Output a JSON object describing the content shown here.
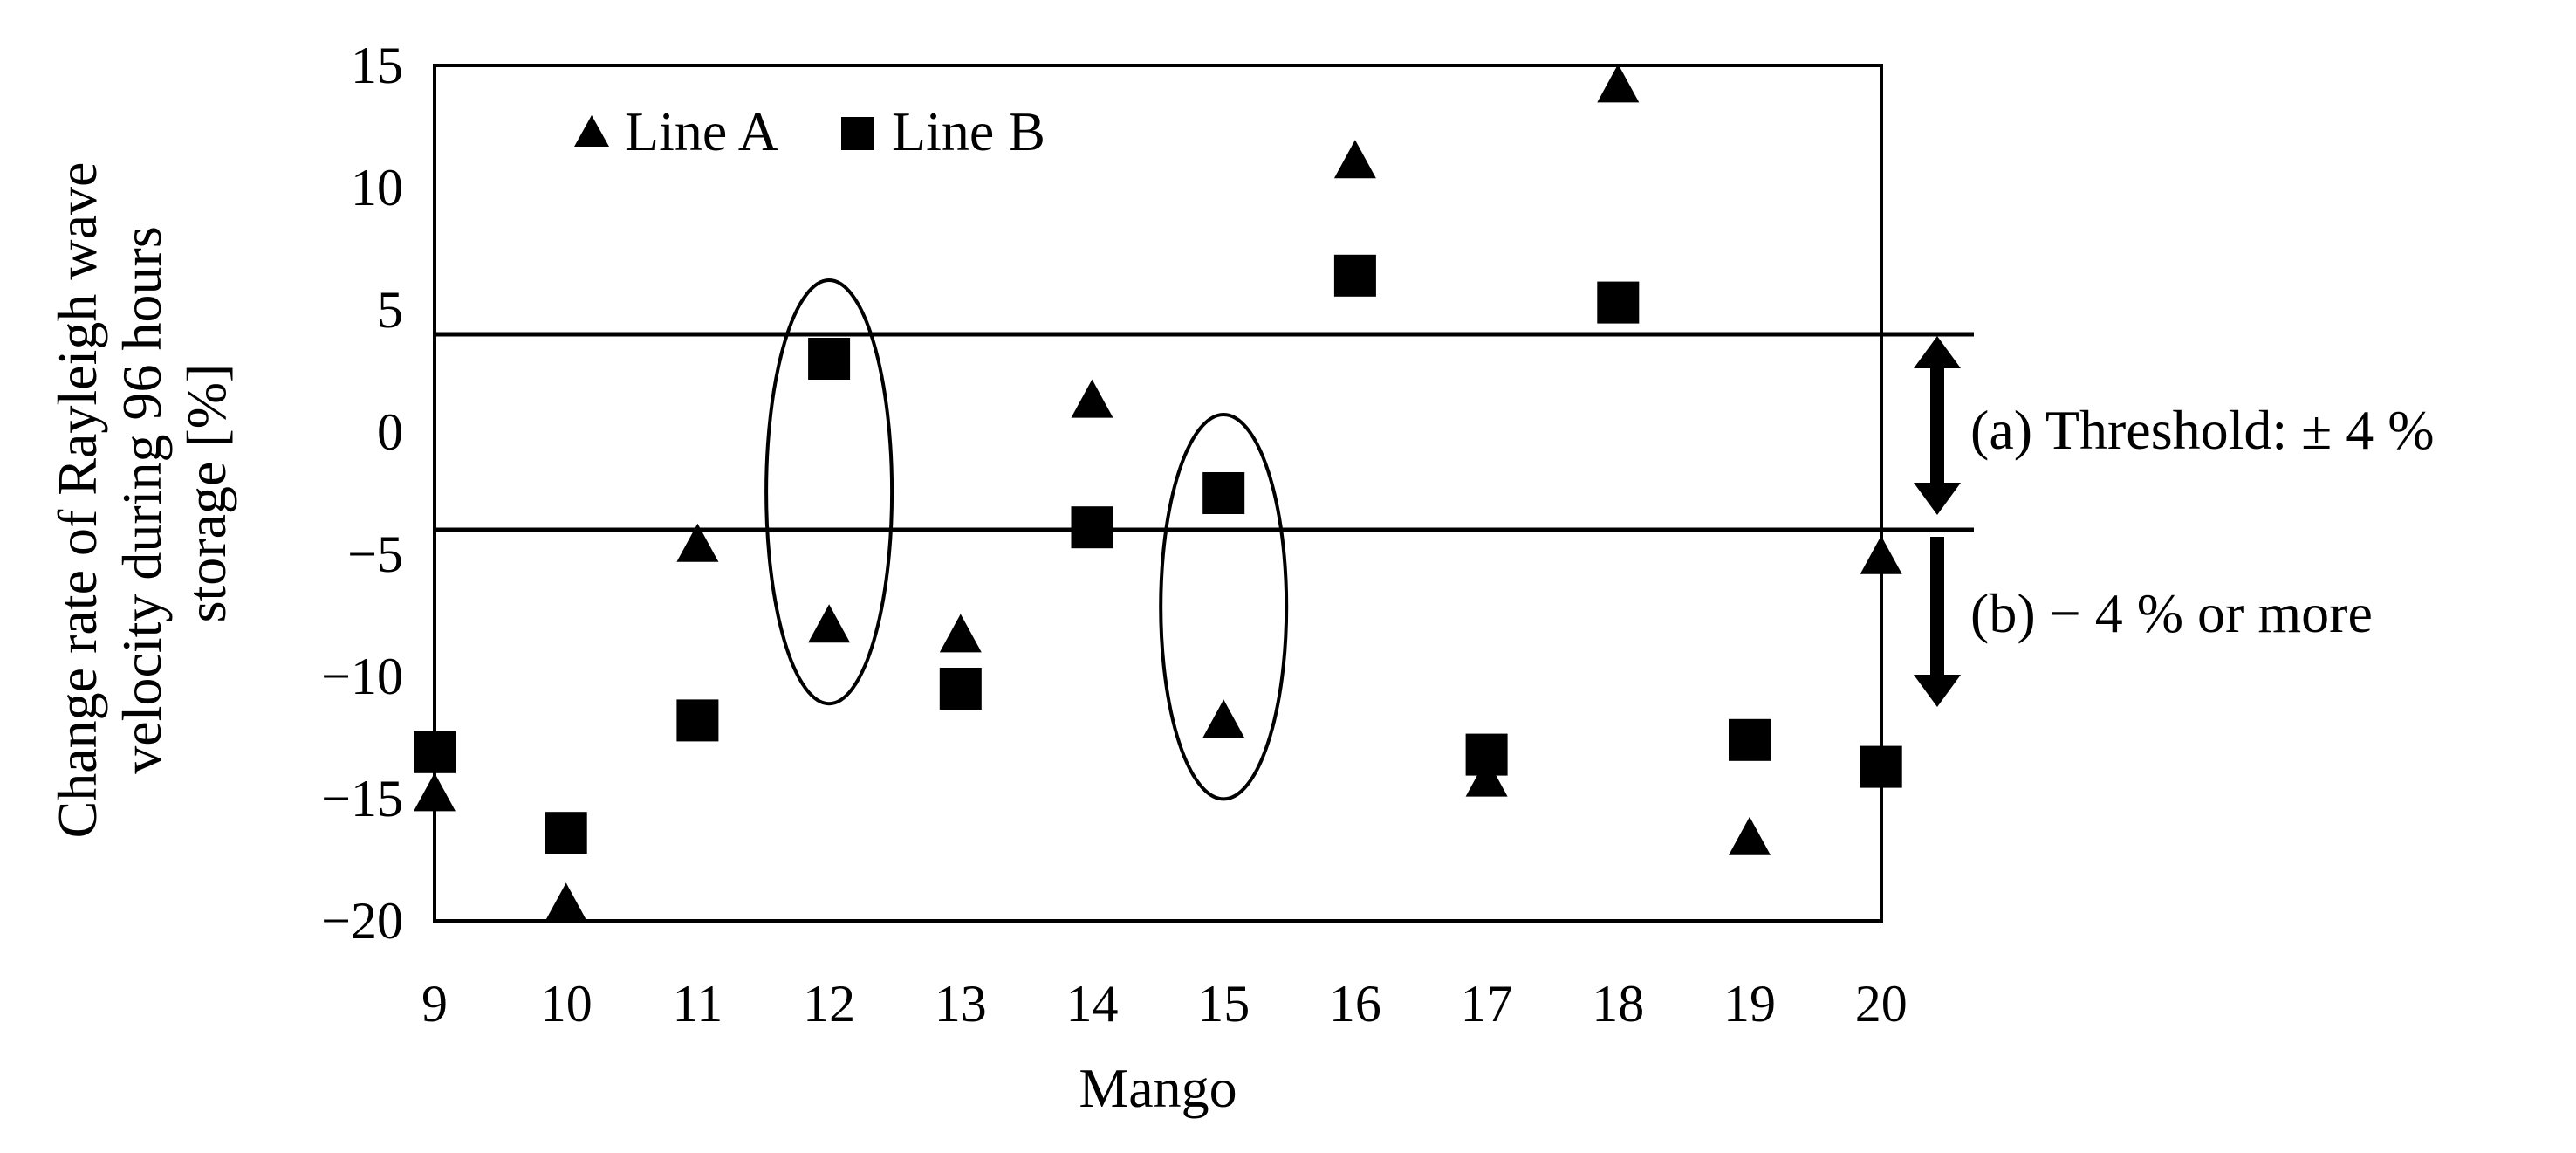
{
  "chart_data": {
    "type": "scatter",
    "xlabel": "Mango",
    "ylabel": [
      "Change rate of Rayleigh wave",
      "velocity during  96 hours",
      "storage [%]"
    ],
    "categories": [
      "9",
      "10",
      "11",
      "12",
      "13",
      "14",
      "15",
      "16",
      "17",
      "18",
      "19",
      "20"
    ],
    "ylim": [
      -20,
      15
    ],
    "yticks": [
      15,
      10,
      5,
      0,
      -5,
      -10,
      -15,
      -20
    ],
    "ytick_labels": [
      "15",
      "10",
      "5",
      "0",
      "−5",
      "−10",
      "−15",
      "−20"
    ],
    "grid": false,
    "legend_position": "top-left",
    "series": [
      {
        "name": "Line A",
        "marker": "triangle",
        "values": [
          -14.8,
          -19.3,
          -4.6,
          -7.9,
          -8.3,
          1.3,
          -11.8,
          11.1,
          -14.2,
          14.2,
          -16.6,
          -5.1
        ]
      },
      {
        "name": "Line B",
        "marker": "square",
        "values": [
          -13.1,
          -16.4,
          -11.8,
          3.0,
          -10.5,
          -3.9,
          -2.5,
          6.4,
          -13.2,
          5.3,
          -12.6,
          -13.7
        ]
      }
    ],
    "reference_lines": [
      4,
      -4
    ],
    "annotations": {
      "threshold": "(a) Threshold: ± 4 %",
      "below": "(b)  − 4 % or more"
    },
    "highlighted_categories": [
      "12",
      "15"
    ]
  }
}
